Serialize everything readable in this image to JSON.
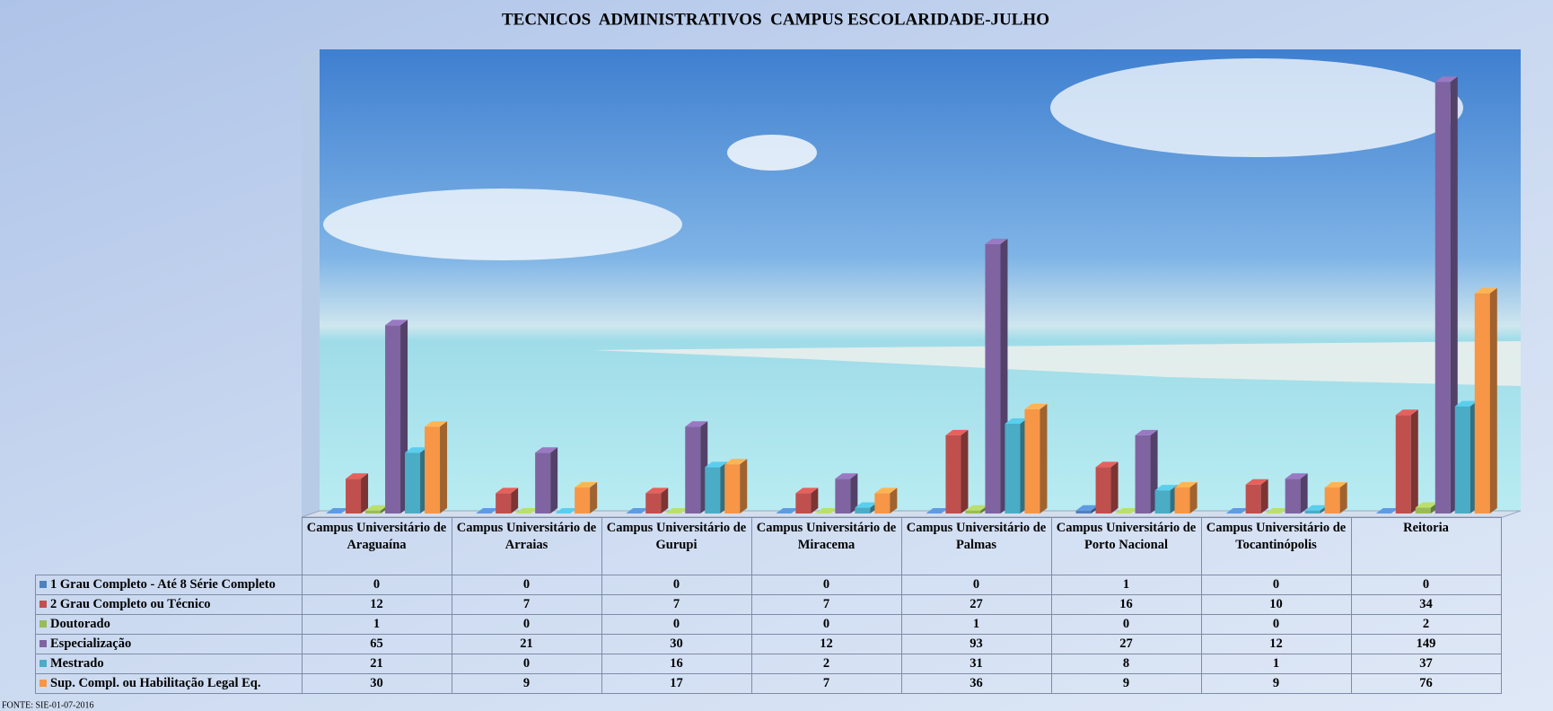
{
  "chart_data": {
    "type": "bar",
    "title": "TECNICOS  ADMINISTRATIVOS  CAMPUS ESCOLARIDADE-JULHO",
    "categories": [
      "Campus Universitário de Araguaína",
      "Campus Universitário de Arraias",
      "Campus Universitário de Gurupi",
      "Campus Universitário de Miracema",
      "Campus Universitário de Palmas",
      "Campus Universitário de Porto Nacional",
      "Campus Universitário de Tocantinópolis",
      "Reitoria"
    ],
    "series": [
      {
        "name": "1 Grau Completo - Até 8 Série Completo",
        "color": "#4f81bd",
        "values": [
          0,
          0,
          0,
          0,
          0,
          1,
          0,
          0
        ]
      },
      {
        "name": "2 Grau Completo ou Técnico",
        "color": "#c0504d",
        "values": [
          12,
          7,
          7,
          7,
          27,
          16,
          10,
          34
        ]
      },
      {
        "name": "Doutorado",
        "color": "#9bbb59",
        "values": [
          1,
          0,
          0,
          0,
          1,
          0,
          0,
          2
        ]
      },
      {
        "name": "Especialização",
        "color": "#8064a2",
        "values": [
          65,
          21,
          30,
          12,
          93,
          27,
          12,
          149
        ]
      },
      {
        "name": "Mestrado",
        "color": "#4bacc6",
        "values": [
          21,
          0,
          16,
          2,
          31,
          8,
          1,
          37
        ]
      },
      {
        "name": "Sup. Compl. ou Habilitação Legal Eq.",
        "color": "#f79646",
        "values": [
          30,
          9,
          17,
          7,
          36,
          9,
          9,
          76
        ]
      }
    ],
    "source": "FONTE: SIE-01-07-2016"
  }
}
